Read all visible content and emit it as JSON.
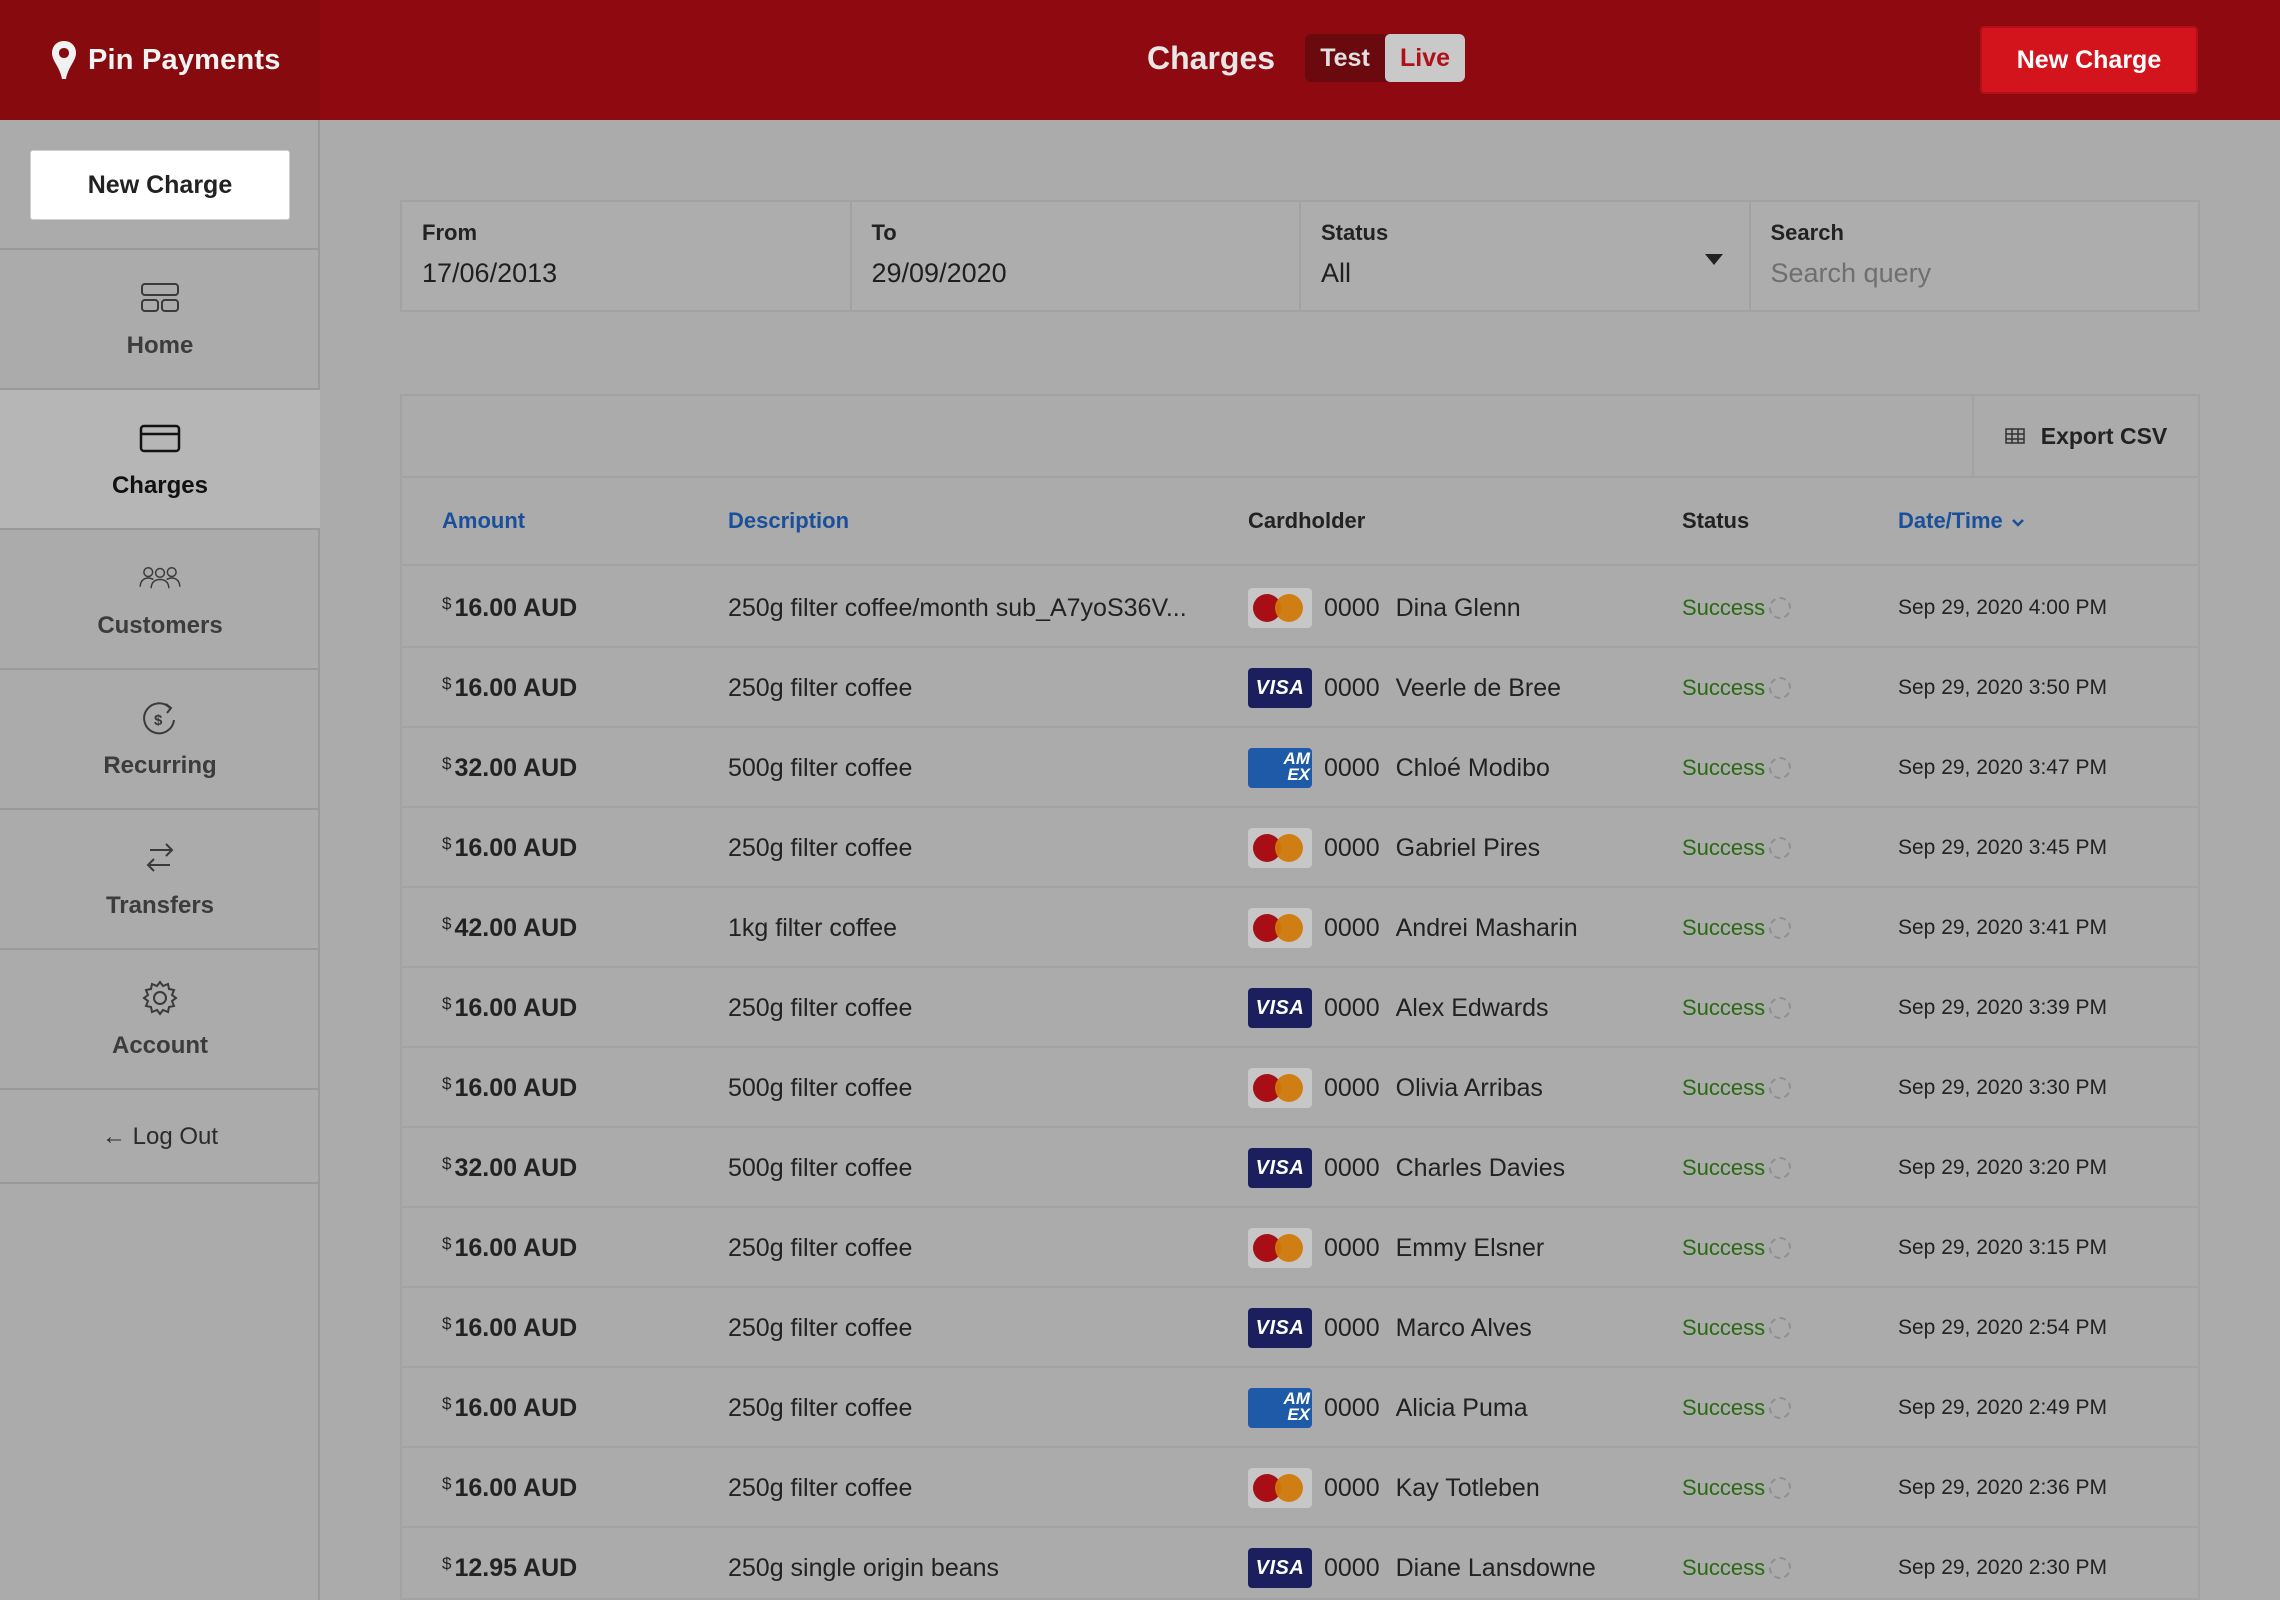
{
  "header": {
    "brand": "Pin Payments",
    "title": "Charges",
    "mode_test": "Test",
    "mode_live": "Live",
    "new_charge": "New Charge",
    "accent_color": "#8f0a10"
  },
  "sidebar": {
    "new_charge": "New Charge",
    "items": [
      {
        "label": "Home",
        "icon": "home-icon"
      },
      {
        "label": "Charges",
        "icon": "credit-card-icon",
        "active": true
      },
      {
        "label": "Customers",
        "icon": "customers-icon"
      },
      {
        "label": "Recurring",
        "icon": "recurring-icon"
      },
      {
        "label": "Transfers",
        "icon": "transfers-icon"
      },
      {
        "label": "Account",
        "icon": "gear-icon"
      }
    ],
    "logout": "← Log Out"
  },
  "filters": {
    "from_label": "From",
    "from_value": "17/06/2013",
    "to_label": "To",
    "to_value": "29/09/2020",
    "status_label": "Status",
    "status_value": "All",
    "search_label": "Search",
    "search_placeholder": "Search query"
  },
  "table": {
    "export_label": "Export CSV",
    "headers": {
      "amount": "Amount",
      "description": "Description",
      "cardholder": "Cardholder",
      "status": "Status",
      "datetime": "Date/Time"
    },
    "rows": [
      {
        "currency": "$",
        "amount": "16.00 AUD",
        "description": "250g filter coffee/month sub_A7yoS36V...",
        "card": "mastercard",
        "last4": "0000",
        "holder": "Dina Glenn",
        "status": "Success",
        "date": "Sep 29, 2020 4:00 PM"
      },
      {
        "currency": "$",
        "amount": "16.00 AUD",
        "description": "250g filter coffee",
        "card": "visa",
        "last4": "0000",
        "holder": "Veerle de Bree",
        "status": "Success",
        "date": "Sep 29, 2020 3:50 PM"
      },
      {
        "currency": "$",
        "amount": "32.00 AUD",
        "description": "500g filter coffee",
        "card": "amex",
        "last4": "0000",
        "holder": "Chloé Modibo",
        "status": "Success",
        "date": "Sep 29, 2020 3:47 PM"
      },
      {
        "currency": "$",
        "amount": "16.00 AUD",
        "description": "250g filter coffee",
        "card": "mastercard",
        "last4": "0000",
        "holder": "Gabriel Pires",
        "status": "Success",
        "date": "Sep 29, 2020 3:45 PM"
      },
      {
        "currency": "$",
        "amount": "42.00 AUD",
        "description": "1kg filter coffee",
        "card": "mastercard",
        "last4": "0000",
        "holder": "Andrei Masharin",
        "status": "Success",
        "date": "Sep 29, 2020 3:41 PM"
      },
      {
        "currency": "$",
        "amount": "16.00 AUD",
        "description": "250g filter coffee",
        "card": "visa",
        "last4": "0000",
        "holder": "Alex Edwards",
        "status": "Success",
        "date": "Sep 29, 2020 3:39 PM"
      },
      {
        "currency": "$",
        "amount": "16.00 AUD",
        "description": "500g filter coffee",
        "card": "mastercard",
        "last4": "0000",
        "holder": "Olivia Arribas",
        "status": "Success",
        "date": "Sep 29, 2020 3:30 PM"
      },
      {
        "currency": "$",
        "amount": "32.00 AUD",
        "description": "500g filter coffee",
        "card": "visa",
        "last4": "0000",
        "holder": "Charles Davies",
        "status": "Success",
        "date": "Sep 29, 2020 3:20 PM"
      },
      {
        "currency": "$",
        "amount": "16.00 AUD",
        "description": "250g filter coffee",
        "card": "mastercard",
        "last4": "0000",
        "holder": "Emmy Elsner",
        "status": "Success",
        "date": "Sep 29, 2020 3:15 PM"
      },
      {
        "currency": "$",
        "amount": "16.00 AUD",
        "description": "250g filter coffee",
        "card": "visa",
        "last4": "0000",
        "holder": "Marco Alves",
        "status": "Success",
        "date": "Sep 29, 2020 2:54 PM"
      },
      {
        "currency": "$",
        "amount": "16.00 AUD",
        "description": "250g filter coffee",
        "card": "amex",
        "last4": "0000",
        "holder": "Alicia Puma",
        "status": "Success",
        "date": "Sep 29, 2020 2:49 PM"
      },
      {
        "currency": "$",
        "amount": "16.00 AUD",
        "description": "250g filter coffee",
        "card": "mastercard",
        "last4": "0000",
        "holder": "Kay Totleben",
        "status": "Success",
        "date": "Sep 29, 2020 2:36 PM"
      },
      {
        "currency": "$",
        "amount": "12.95 AUD",
        "description": "250g single origin beans",
        "card": "visa",
        "last4": "0000",
        "holder": "Diane Lansdowne",
        "status": "Success",
        "date": "Sep 29, 2020 2:30 PM"
      }
    ]
  }
}
